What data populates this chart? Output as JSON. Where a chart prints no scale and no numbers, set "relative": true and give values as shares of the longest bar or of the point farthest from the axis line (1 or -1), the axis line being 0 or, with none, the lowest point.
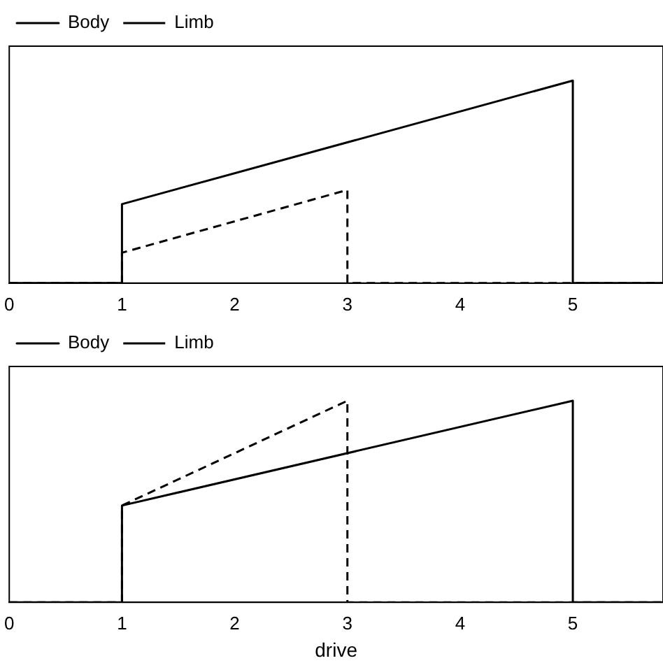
{
  "chart_data": [
    {
      "type": "line",
      "relative": true,
      "legend": "top left",
      "grid": false,
      "marker": "none",
      "xlim": [
        0,
        5.8
      ],
      "xticks": [
        0,
        1,
        2,
        3,
        4,
        5
      ],
      "series": [
        {
          "name": "Body",
          "color": "#000000",
          "line_style": "solid",
          "x": [
            0,
            1,
            1,
            5,
            5,
            5.8
          ],
          "values": [
            0,
            0,
            0.39,
            1,
            0,
            0
          ]
        },
        {
          "name": "Limb",
          "color": "#000000",
          "line_style": "dashed",
          "x": [
            0,
            1,
            1,
            3,
            3,
            5.8
          ],
          "values": [
            0,
            0,
            0.15,
            0.46,
            0,
            0
          ]
        }
      ]
    },
    {
      "type": "line",
      "relative": true,
      "legend": "top left",
      "grid": false,
      "marker": "none",
      "xlabel": "drive",
      "xlim": [
        0,
        5.8
      ],
      "xticks": [
        0,
        1,
        2,
        3,
        4,
        5
      ],
      "series": [
        {
          "name": "Body",
          "color": "#000000",
          "line_style": "solid",
          "x": [
            0,
            1,
            1,
            5,
            5,
            5.8
          ],
          "values": [
            0,
            0,
            0.48,
            1,
            0,
            0
          ]
        },
        {
          "name": "Limb",
          "color": "#000000",
          "line_style": "dashed",
          "x": [
            0,
            1,
            1,
            3,
            3,
            5.8
          ],
          "values": [
            0,
            0,
            0.48,
            1,
            0,
            0
          ]
        }
      ]
    }
  ]
}
